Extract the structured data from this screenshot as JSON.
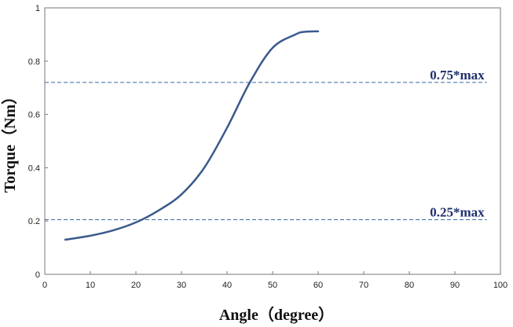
{
  "chart_data": {
    "type": "line",
    "title": "",
    "xlabel": "Angle（degree）",
    "ylabel": "Torque（Nm）",
    "xlim": [
      0,
      100
    ],
    "ylim": [
      0,
      1
    ],
    "xticks": [
      0,
      10,
      20,
      30,
      40,
      50,
      60,
      70,
      80,
      90,
      100
    ],
    "yticks": [
      0,
      0.2,
      0.4,
      0.6,
      0.8,
      1
    ],
    "ytick_labels": [
      "0",
      "0.2",
      "0.4",
      "0.6",
      "0.8",
      "1"
    ],
    "grid": false,
    "series": [
      {
        "color": "#3a5a8c",
        "x": [
          4.5,
          10,
          15,
          20,
          25,
          30,
          35,
          40,
          45,
          50,
          55,
          57,
          60
        ],
        "y": [
          0.13,
          0.145,
          0.165,
          0.195,
          0.24,
          0.3,
          0.4,
          0.55,
          0.72,
          0.85,
          0.9,
          0.91,
          0.912
        ]
      }
    ],
    "reference_lines": [
      {
        "y": 0.72,
        "label": "0.75*max",
        "color": "#3a6aa0",
        "style": "dashed"
      },
      {
        "y": 0.205,
        "label": "0.25*max",
        "color": "#3a6aa0",
        "style": "dashed"
      }
    ]
  }
}
